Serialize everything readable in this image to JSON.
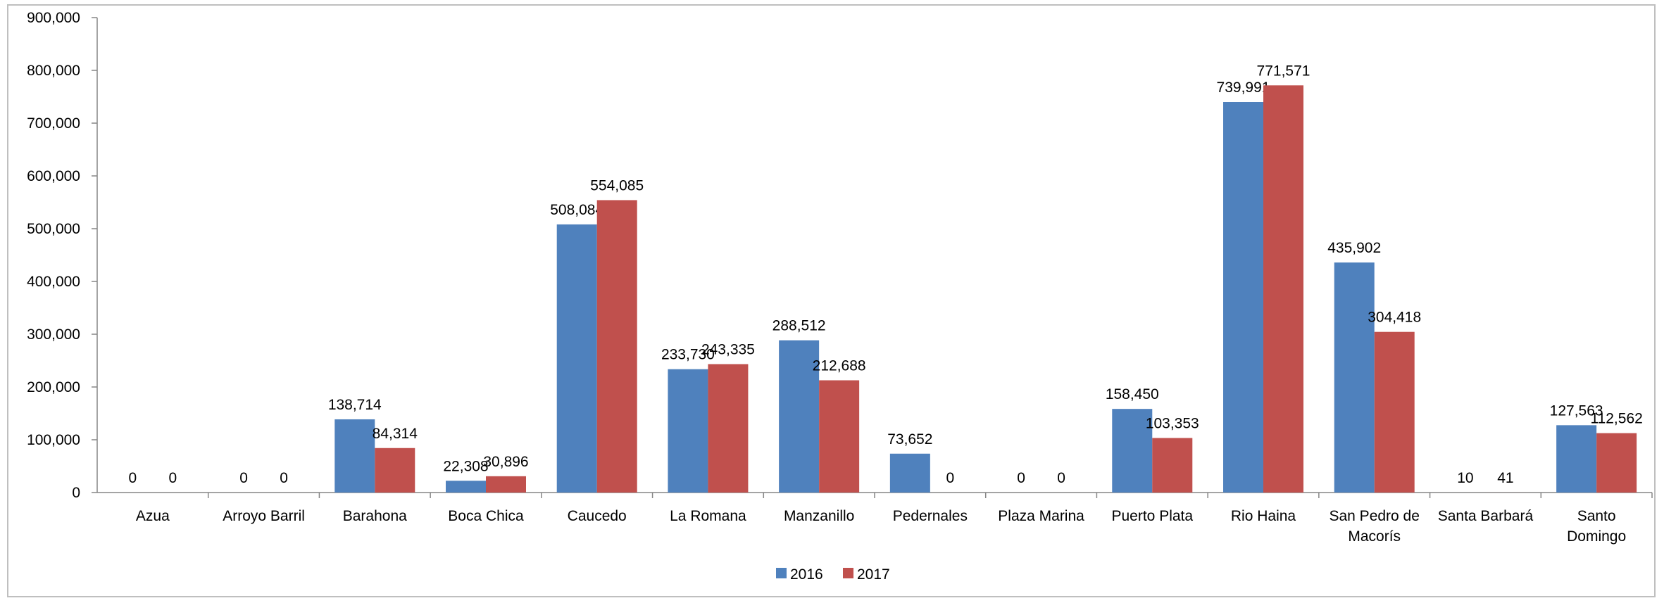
{
  "chart_data": {
    "type": "bar",
    "categories": [
      [
        "Azua"
      ],
      [
        "Arroyo Barril"
      ],
      [
        "Barahona"
      ],
      [
        "Boca Chica"
      ],
      [
        "Caucedo"
      ],
      [
        "La Romana"
      ],
      [
        "Manzanillo"
      ],
      [
        "Pedernales"
      ],
      [
        "Plaza Marina"
      ],
      [
        "Puerto Plata"
      ],
      [
        "Rio Haina"
      ],
      [
        "San Pedro de",
        "Macorís"
      ],
      [
        "Santa Barbará"
      ],
      [
        "Santo",
        "Domingo"
      ]
    ],
    "series": [
      {
        "name": "2016",
        "color": "#4f81bd",
        "values": [
          0,
          0,
          138714,
          22308,
          508084,
          233730,
          288512,
          73652,
          0,
          158450,
          739991,
          435902,
          10,
          127563
        ],
        "labels": [
          "0",
          "0",
          "138,714",
          "22,308",
          "508,084",
          "233,730",
          "288,512",
          "73,652",
          "0",
          "158,450",
          "739,991",
          "435,902",
          "10",
          "127,563"
        ]
      },
      {
        "name": "2017",
        "color": "#c0504d",
        "values": [
          0,
          0,
          84314,
          30896,
          554085,
          243335,
          212688,
          0,
          0,
          103353,
          771571,
          304418,
          41,
          112562
        ],
        "labels": [
          "0",
          "0",
          "84,314",
          "30,896",
          "554,085",
          "243,335",
          "212,688",
          "0",
          "0",
          "103,353",
          "771,571",
          "304,418",
          "41",
          "112,562"
        ]
      }
    ],
    "ylim": [
      0,
      900000
    ],
    "yticks": [
      0,
      100000,
      200000,
      300000,
      400000,
      500000,
      600000,
      700000,
      800000,
      900000
    ],
    "ytick_labels": [
      "0",
      "100,000",
      "200,000",
      "300,000",
      "400,000",
      "500,000",
      "600,000",
      "700,000",
      "800,000",
      "900,000"
    ],
    "title": "",
    "xlabel": "",
    "ylabel": "",
    "grid": false,
    "legend_position": "bottom"
  }
}
